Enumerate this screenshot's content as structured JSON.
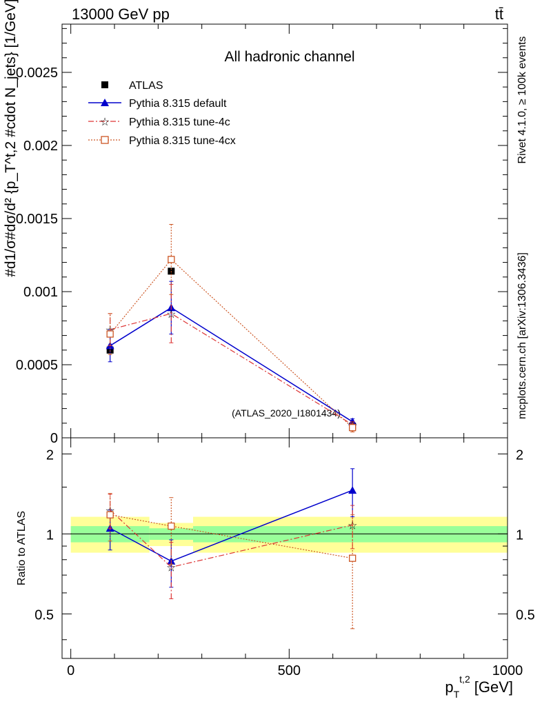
{
  "header": {
    "left": "13000 GeV pp",
    "right": "tt̄",
    "side_top": "Rivet 4.1.0, ≥ 100k events",
    "side_bottom": "mcplots.cern.ch [arXiv:1306.3436]"
  },
  "colors": {
    "data": "#000000",
    "default": "#0000cc",
    "tune4c": "#dd3333",
    "tune4cx": "#cc5522",
    "band_inner": "#99ff99",
    "band_outer": "#ffff99"
  },
  "chart_data": [
    {
      "type": "scatter",
      "panel": "main",
      "title": "All hadronic channel",
      "watermark": "(ATLAS_2020_I1801434)",
      "ylabel": "#d1/σ #dσ / d²{p_T^t,2 #cdot N_jets} [1/GeV]",
      "ylabel_rendered": "#d1/σ#dσ/d² {p_T^t,2 #cdot N_jets} [1/GeV]",
      "xlim": [
        -20,
        1000
      ],
      "ylim": [
        0,
        0.00283
      ],
      "yticks": [
        0,
        0.0005,
        0.001,
        0.0015,
        0.002,
        0.0025
      ],
      "ytick_labels": [
        "0",
        "0.0005",
        "0.001",
        "0.0015",
        "0.002",
        "0.0025"
      ],
      "legend": [
        "ATLAS",
        "Pythia 8.315 default",
        "Pythia 8.315 tune-4c",
        "Pythia 8.315 tune-4cx"
      ],
      "legend_position": "top-left",
      "series": [
        {
          "name": "ATLAS",
          "x": [
            90,
            230,
            645
          ],
          "y": [
            0.0006,
            0.00114,
            8e-05
          ],
          "err": [
            0,
            0,
            0
          ]
        },
        {
          "name": "Pythia 8.315 default",
          "x": [
            90,
            230,
            645
          ],
          "y": [
            0.00063,
            0.00089,
            0.00011
          ],
          "err": [
            0.00011,
            0.00018,
            2e-05
          ]
        },
        {
          "name": "Pythia 8.315 tune-4c",
          "x": [
            90,
            230,
            645
          ],
          "y": [
            0.00074,
            0.00085,
            9e-05
          ],
          "err": [
            0.00011,
            0.0002,
            2e-05
          ]
        },
        {
          "name": "Pythia 8.315 tune-4cx",
          "x": [
            90,
            230,
            645
          ],
          "y": [
            0.00071,
            0.00122,
            7e-05
          ],
          "err": [
            0.00014,
            0.00024,
            3e-05
          ]
        }
      ]
    },
    {
      "type": "scatter",
      "panel": "ratio",
      "ylabel": "Ratio to ATLAS",
      "xlabel": "p_T^{t,2} [GeV]",
      "xlabel_main": "p",
      "xlabel_sub": "T",
      "xlabel_sup": "t,2",
      "xlabel_unit": "[GeV]",
      "xlim": [
        -20,
        1000
      ],
      "ylim": [
        0.34,
        2.3
      ],
      "xticks": [
        0,
        500,
        1000
      ],
      "xtick_labels": [
        "0",
        "500",
        "1000"
      ],
      "yticks": [
        0.5,
        1,
        2
      ],
      "ytick_labels": [
        "0.5",
        "1",
        "2"
      ],
      "bands": [
        {
          "x0": 0,
          "x1": 180,
          "inner": [
            0.93,
            1.07
          ],
          "outer": [
            0.85,
            1.16
          ]
        },
        {
          "x0": 180,
          "x1": 280,
          "inner": [
            0.95,
            1.05
          ],
          "outer": [
            0.9,
            1.1
          ]
        },
        {
          "x0": 280,
          "x1": 1000,
          "inner": [
            0.93,
            1.07
          ],
          "outer": [
            0.85,
            1.16
          ]
        }
      ],
      "series": [
        {
          "name": "Pythia 8.315 default",
          "x": [
            90,
            230,
            645
          ],
          "y": [
            1.05,
            0.79,
            1.46
          ],
          "err": [
            0.18,
            0.16,
            0.3
          ]
        },
        {
          "name": "Pythia 8.315 tune-4c",
          "x": [
            90,
            230,
            645
          ],
          "y": [
            1.23,
            0.75,
            1.08
          ],
          "err": [
            0.18,
            0.18,
            0.2
          ]
        },
        {
          "name": "Pythia 8.315 tune-4cx",
          "x": [
            90,
            230,
            645
          ],
          "y": [
            1.18,
            1.07,
            0.81
          ],
          "err": [
            0.24,
            0.3,
            0.37
          ]
        }
      ]
    }
  ]
}
